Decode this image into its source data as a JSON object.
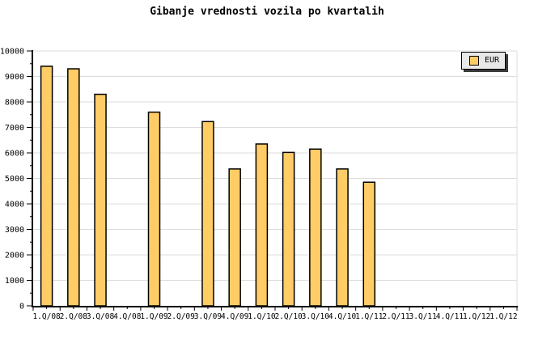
{
  "title": "Gibanje vrednosti vozila po kvartalih",
  "legend": {
    "label": "EUR",
    "swatch_color": "#FFCC66",
    "position": "top-right"
  },
  "colors": {
    "background": "#FFFFFF",
    "bar_fill": "#FFCC66",
    "bar_border": "#000000",
    "grid": "#DCDCDC",
    "axis": "#000000",
    "tick": "#000000",
    "legend_bg": "#E8E8E8",
    "legend_border": "#000000",
    "legend_shadow": "#3A3A3A",
    "text": "#000000"
  },
  "chart_data": {
    "type": "bar",
    "title": "Gibanje vrednosti vozila po kvartalih",
    "xlabel": "",
    "ylabel": "",
    "categories": [
      "1.Q/08",
      "2.Q/08",
      "3.Q/08",
      "4.Q/08",
      "1.Q/09",
      "2.Q/09",
      "3.Q/09",
      "4.Q/09",
      "1.Q/10",
      "2.Q/10",
      "3.Q/10",
      "4.Q/10",
      "1.Q/11",
      "2.Q/11",
      "3.Q/11",
      "4.Q/11",
      "1.Q/12",
      "1.Q/12"
    ],
    "series": [
      {
        "name": "EUR",
        "values": [
          9400,
          9300,
          8300,
          null,
          7600,
          null,
          7230,
          5370,
          6350,
          6020,
          6150,
          5370,
          4850,
          null,
          null,
          null,
          null,
          null
        ]
      }
    ],
    "ylim": [
      0,
      10000
    ],
    "yticks": [
      0,
      1000,
      2000,
      3000,
      4000,
      5000,
      6000,
      7000,
      8000,
      9000,
      10000
    ],
    "y_minor_step": 500,
    "grid": "horizontal-major",
    "legend_position": "top-right"
  }
}
